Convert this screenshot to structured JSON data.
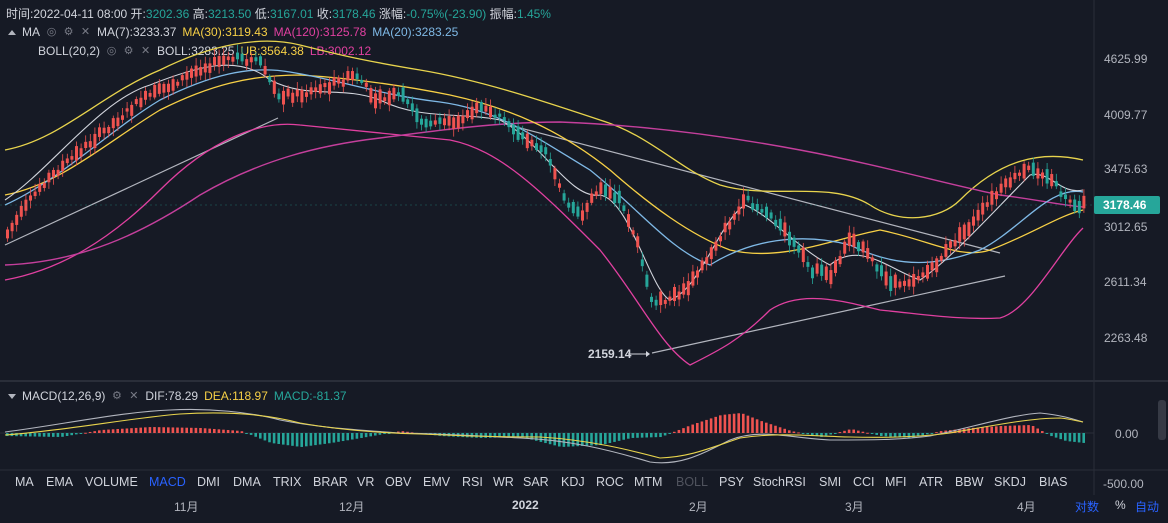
{
  "header": {
    "time_label": "时间:",
    "time": "2022-04-11 08:00",
    "open_label": "开:",
    "open": "3202.36",
    "high_label": "高:",
    "high": "3213.50",
    "low_label": "低:",
    "low": "3167.01",
    "close_label": "收:",
    "close": "3178.46",
    "change_label": "涨幅:",
    "change": "-0.75%(-23.90)",
    "amp_label": "振幅:",
    "amp": "1.45%"
  },
  "indicators": {
    "ma": {
      "name": "MA",
      "ma7": "MA(7):3233.37",
      "ma30": "MA(30):3119.43",
      "ma120": "MA(120):3125.78",
      "ma20": "MA(20):3283.25"
    },
    "boll": {
      "name": "BOLL(20,2)",
      "boll": "BOLL:3283.25",
      "ub": "UB:3564.38",
      "lb": "LB:3002.12"
    },
    "macd": {
      "name": "MACD(12,26,9)",
      "dif": "DIF:78.29",
      "dea": "DEA:118.97",
      "macd": "MACD:-81.37"
    }
  },
  "price_axis": {
    "ticks": [
      "4625.99",
      "4009.77",
      "3475.63",
      "3012.65",
      "2611.34",
      "2263.48"
    ],
    "current": "3178.46"
  },
  "macd_axis": {
    "ticks": [
      "0.00",
      "-500.00"
    ]
  },
  "annotations": {
    "low_marker": "2159.14"
  },
  "tabs": [
    "MA",
    "EMA",
    "VOLUME",
    "MACD",
    "DMI",
    "DMA",
    "TRIX",
    "BRAR",
    "VR",
    "OBV",
    "EMV",
    "RSI",
    "WR",
    "SAR",
    "KDJ",
    "ROC",
    "MTM",
    "BOLL",
    "PSY",
    "StochRSI",
    "SMI",
    "CCI",
    "MFI",
    "ATR",
    "BBW",
    "SKDJ",
    "BIAS"
  ],
  "active_tab": "MACD",
  "disabled_tab": "BOLL",
  "time_axis": [
    "11月",
    "12月",
    "2022",
    "2月",
    "3月",
    "4月"
  ],
  "bottom_right": {
    "log": "对数",
    "percent": "%",
    "auto": "自动"
  },
  "colors": {
    "up": "#ef5350",
    "down": "#26a69a",
    "ma7": "#d1d4dc",
    "ma30": "#f7d046",
    "ma120": "#e040a0",
    "ma20": "#7fb9e6",
    "boll": "#e8d44d",
    "active": "#2962ff"
  }
}
